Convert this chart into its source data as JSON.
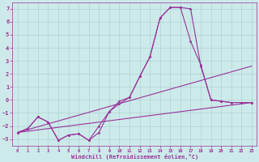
{
  "xlabel": "Windchill (Refroidissement éolien,°C)",
  "xlim": [
    -0.5,
    23.5
  ],
  "ylim": [
    -3.5,
    7.5
  ],
  "xticks": [
    0,
    1,
    2,
    3,
    4,
    5,
    6,
    7,
    8,
    9,
    10,
    11,
    12,
    13,
    14,
    15,
    16,
    17,
    18,
    19,
    20,
    21,
    22,
    23
  ],
  "yticks": [
    -3,
    -2,
    -1,
    0,
    1,
    2,
    3,
    4,
    5,
    6,
    7
  ],
  "bg_color": "#cceaea",
  "grid_color": "#aacccc",
  "line_color": "#993399",
  "curve1_y": [
    -2.5,
    -2.2,
    -1.3,
    -1.7,
    -3.1,
    -2.7,
    -2.6,
    -3.1,
    -2.5,
    -0.9,
    -0.3,
    0.2,
    1.8,
    3.3,
    6.3,
    7.1,
    7.1,
    7.0,
    2.6,
    0.0,
    -0.1,
    -0.2,
    -0.2,
    -0.2
  ],
  "curve2_y": [
    -2.5,
    -2.2,
    -1.3,
    -1.7,
    -3.1,
    -2.7,
    -2.6,
    -3.1,
    -2.0,
    -0.9,
    -0.1,
    0.2,
    1.8,
    3.3,
    6.3,
    7.1,
    7.1,
    4.5,
    2.7,
    0.0,
    -0.1,
    -0.2,
    -0.2,
    -0.2
  ],
  "line1_x": [
    0,
    23
  ],
  "line1_y": [
    -2.5,
    -0.2
  ],
  "line2_x": [
    0,
    23
  ],
  "line2_y": [
    -2.5,
    2.6
  ]
}
